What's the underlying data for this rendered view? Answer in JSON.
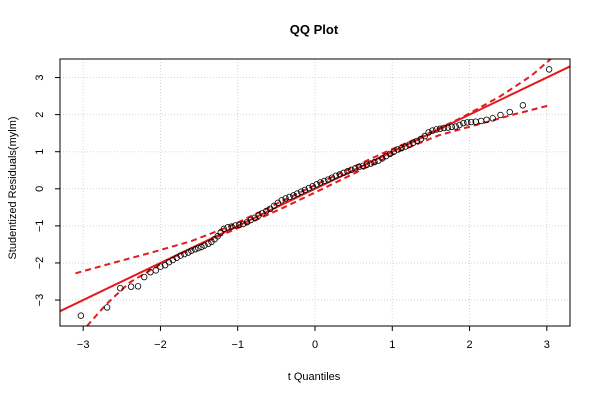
{
  "chart_data": {
    "type": "scatter",
    "title": "QQ Plot",
    "xlabel": "t Quantiles",
    "ylabel": "Studentized Residuals(mylm)",
    "xlim": [
      -3.3,
      3.3
    ],
    "ylim": [
      -3.7,
      3.5
    ],
    "xticks": [
      -3,
      -2,
      -1,
      0,
      1,
      2,
      3
    ],
    "yticks": [
      -3,
      -2,
      -1,
      0,
      1,
      2,
      3
    ],
    "xtick_labels": [
      "−3",
      "−2",
      "−1",
      "0",
      "1",
      "2",
      "3"
    ],
    "ytick_labels": [
      "−3",
      "−2",
      "−1",
      "0",
      "1",
      "2",
      "3"
    ],
    "grid": true,
    "colors": {
      "points": "#000000",
      "reference_line": "#e41a1c",
      "envelope": "#e41a1c",
      "grid": "#d3d3d3"
    },
    "series": [
      {
        "values": [
          [
            -3.03,
            -3.42
          ],
          [
            -2.69,
            -3.2
          ],
          [
            -2.52,
            -2.68
          ],
          [
            -2.38,
            -2.64
          ],
          [
            -2.29,
            -2.63
          ],
          [
            -2.21,
            -2.38
          ],
          [
            -2.13,
            -2.25
          ],
          [
            -2.06,
            -2.2
          ],
          [
            -2.0,
            -2.1
          ],
          [
            -1.94,
            -2.06
          ],
          [
            -1.89,
            -1.98
          ],
          [
            -1.84,
            -1.92
          ],
          [
            -1.79,
            -1.86
          ],
          [
            -1.74,
            -1.8
          ],
          [
            -1.69,
            -1.76
          ],
          [
            -1.64,
            -1.72
          ],
          [
            -1.6,
            -1.67
          ],
          [
            -1.55,
            -1.63
          ],
          [
            -1.51,
            -1.6
          ],
          [
            -1.47,
            -1.57
          ],
          [
            -1.43,
            -1.53
          ],
          [
            -1.38,
            -1.48
          ],
          [
            -1.34,
            -1.43
          ],
          [
            -1.3,
            -1.36
          ],
          [
            -1.26,
            -1.28
          ],
          [
            -1.22,
            -1.18
          ],
          [
            -1.18,
            -1.08
          ],
          [
            -1.13,
            -1.04
          ],
          [
            -1.08,
            -1.02
          ],
          [
            -1.03,
            -0.99
          ],
          [
            -0.98,
            -0.97
          ],
          [
            -0.93,
            -0.95
          ],
          [
            -0.88,
            -0.9
          ],
          [
            -0.83,
            -0.84
          ],
          [
            -0.78,
            -0.78
          ],
          [
            -0.73,
            -0.72
          ],
          [
            -0.68,
            -0.66
          ],
          [
            -0.63,
            -0.6
          ],
          [
            -0.58,
            -0.54
          ],
          [
            -0.53,
            -0.46
          ],
          [
            -0.48,
            -0.38
          ],
          [
            -0.43,
            -0.31
          ],
          [
            -0.38,
            -0.26
          ],
          [
            -0.33,
            -0.22
          ],
          [
            -0.28,
            -0.18
          ],
          [
            -0.23,
            -0.13
          ],
          [
            -0.18,
            -0.08
          ],
          [
            -0.13,
            -0.03
          ],
          [
            -0.08,
            0.02
          ],
          [
            -0.03,
            0.07
          ],
          [
            0.02,
            0.12
          ],
          [
            0.07,
            0.17
          ],
          [
            0.12,
            0.21
          ],
          [
            0.17,
            0.25
          ],
          [
            0.22,
            0.3
          ],
          [
            0.27,
            0.35
          ],
          [
            0.32,
            0.39
          ],
          [
            0.37,
            0.43
          ],
          [
            0.42,
            0.47
          ],
          [
            0.47,
            0.51
          ],
          [
            0.52,
            0.55
          ],
          [
            0.57,
            0.59
          ],
          [
            0.62,
            0.62
          ],
          [
            0.67,
            0.65
          ],
          [
            0.72,
            0.68
          ],
          [
            0.77,
            0.72
          ],
          [
            0.82,
            0.76
          ],
          [
            0.87,
            0.82
          ],
          [
            0.92,
            0.88
          ],
          [
            0.97,
            0.94
          ],
          [
            1.02,
            1.0
          ],
          [
            1.07,
            1.06
          ],
          [
            1.12,
            1.1
          ],
          [
            1.17,
            1.14
          ],
          [
            1.22,
            1.19
          ],
          [
            1.27,
            1.24
          ],
          [
            1.32,
            1.29
          ],
          [
            1.37,
            1.34
          ],
          [
            1.42,
            1.42
          ],
          [
            1.47,
            1.52
          ],
          [
            1.52,
            1.57
          ],
          [
            1.57,
            1.6
          ],
          [
            1.62,
            1.62
          ],
          [
            1.67,
            1.64
          ],
          [
            1.72,
            1.65
          ],
          [
            1.77,
            1.67
          ],
          [
            1.82,
            1.68
          ],
          [
            1.87,
            1.72
          ],
          [
            1.92,
            1.77
          ],
          [
            1.97,
            1.79
          ],
          [
            2.02,
            1.8
          ],
          [
            2.08,
            1.81
          ],
          [
            2.15,
            1.83
          ],
          [
            2.22,
            1.86
          ],
          [
            2.3,
            1.9
          ],
          [
            2.4,
            1.99
          ],
          [
            2.52,
            2.07
          ],
          [
            2.69,
            2.25
          ],
          [
            3.03,
            3.22
          ]
        ]
      }
    ],
    "reference_line": {
      "intercept": 0.0,
      "slope": 1.0
    },
    "envelope_upper": [
      [
        -3.1,
        -2.28
      ],
      [
        -2.6,
        -1.99
      ],
      [
        -2.1,
        -1.71
      ],
      [
        -1.6,
        -1.41
      ],
      [
        -1.1,
        -1.01
      ],
      [
        -0.6,
        -0.51
      ],
      [
        -0.1,
        0.0
      ],
      [
        0.4,
        0.5
      ],
      [
        0.9,
        0.98
      ],
      [
        1.4,
        1.43
      ],
      [
        1.9,
        1.92
      ],
      [
        2.4,
        2.5
      ],
      [
        2.8,
        3.05
      ],
      [
        3.05,
        3.5
      ]
    ],
    "envelope_lower": [
      [
        -2.95,
        -3.7
      ],
      [
        -2.7,
        -3.11
      ],
      [
        -2.4,
        -2.53
      ],
      [
        -1.9,
        -1.91
      ],
      [
        -1.4,
        -1.42
      ],
      [
        -0.9,
        -0.97
      ],
      [
        -0.4,
        -0.5
      ],
      [
        0.1,
        0.0
      ],
      [
        0.6,
        0.51
      ],
      [
        1.1,
        1.02
      ],
      [
        1.6,
        1.44
      ],
      [
        2.1,
        1.73
      ],
      [
        2.6,
        2.02
      ],
      [
        3.05,
        2.26
      ]
    ]
  }
}
